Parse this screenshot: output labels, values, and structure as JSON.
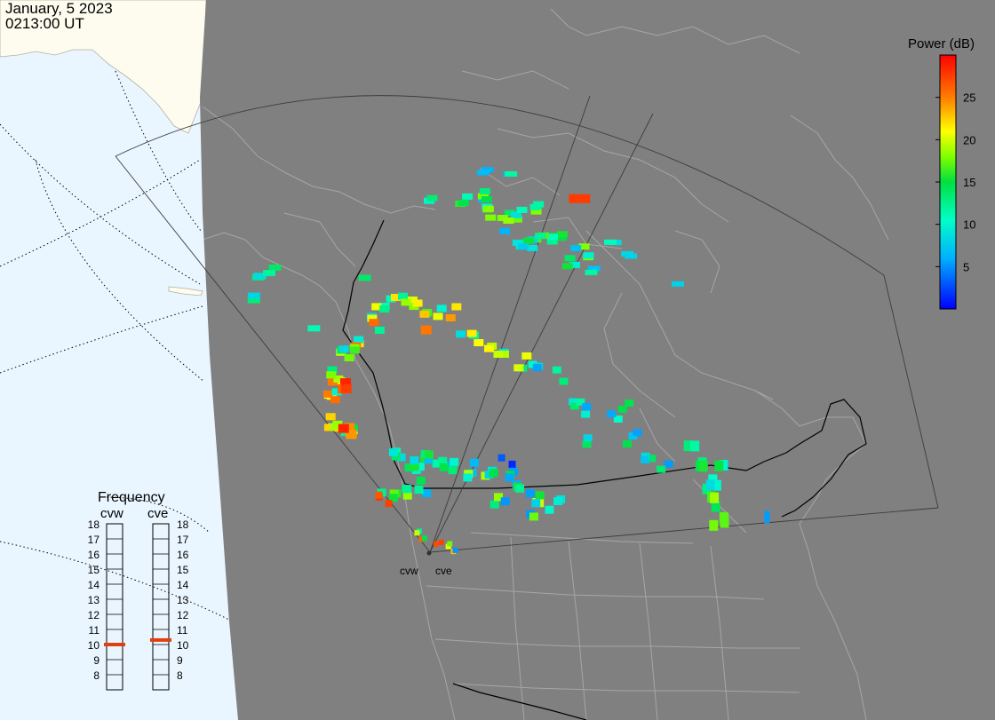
{
  "header": {
    "date": "January, 5 2023",
    "time": "0213:00 UT"
  },
  "colors": {
    "night": "#808080",
    "ocean_day": "#eaf6ff",
    "land_day": "#fdfcef",
    "coast": "#a6a6a6",
    "border": "#000000",
    "freq_marker": "#e04010"
  },
  "legend": {
    "title": "Power (dB)",
    "ticks": [
      "25",
      "20",
      "15",
      "10",
      "5"
    ],
    "tick_values": [
      25,
      20,
      15,
      10,
      5
    ],
    "range": [
      0,
      30
    ]
  },
  "radars": {
    "left": "cvw",
    "right": "cve"
  },
  "frequency": {
    "title": "Frequency",
    "scale": [
      "18",
      "17",
      "16",
      "15",
      "14",
      "13",
      "12",
      "11",
      "10",
      "9",
      "8"
    ],
    "cvw_mhz": 10.5,
    "cve_mhz": 10.8
  }
}
